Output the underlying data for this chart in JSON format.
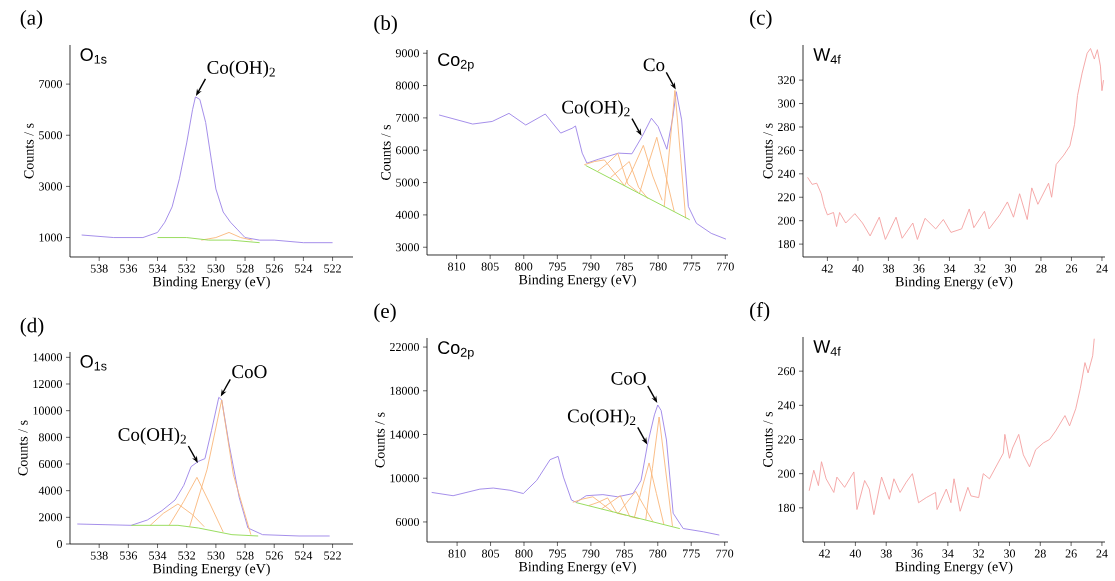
{
  "chart_data": [
    {
      "type": "line",
      "title": "(a)",
      "xlabel": "Binding Energy (eV)",
      "ylabel": "Counts  / s",
      "xlim": [
        540,
        520.6
      ],
      "ylim": [
        240,
        8530
      ],
      "xticks": [
        538,
        536,
        534,
        532,
        530,
        528,
        526,
        524,
        522
      ],
      "yticks": [
        1000,
        3000,
        5000,
        7000
      ],
      "annotations": [
        "O$_{1s}$",
        {
          "text": "Co(OH)$_{2}$",
          "x": 531.4,
          "y": 6500
        }
      ],
      "series": [
        {
          "color": "#9b82e8",
          "x": [
            539.2,
            537,
            535,
            534,
            533.5,
            533,
            532.5,
            532,
            531.6,
            531.4,
            531.1,
            530.7,
            530.3,
            530,
            529.5,
            529,
            528.5,
            528,
            527,
            526,
            524,
            522
          ],
          "values": [
            1100,
            1000,
            1000,
            1200,
            1600,
            2200,
            3300,
            4700,
            6000,
            6500,
            6400,
            5500,
            4000,
            2900,
            2000,
            1600,
            1300,
            1000,
            900,
            900,
            800,
            800
          ]
        },
        {
          "color": "#f9b77a",
          "x": [
            531,
            530,
            529.1,
            528.3,
            527.5
          ],
          "values": [
            900,
            1000,
            1200,
            1000,
            900
          ]
        },
        {
          "color": "#8fd94f",
          "x": [
            534,
            532,
            530.5,
            529,
            527
          ],
          "values": [
            1000,
            1000,
            900,
            900,
            800
          ]
        }
      ]
    },
    {
      "type": "line",
      "title": "(b)",
      "xlabel": "Binding Energy (eV)",
      "ylabel": "Counts  / s",
      "xlim": [
        814.4,
        769.6
      ],
      "ylim": [
        2760,
        9100
      ],
      "xticks": [
        810,
        805,
        800,
        795,
        790,
        785,
        780,
        775,
        770
      ],
      "yticks": [
        3000,
        4000,
        5000,
        6000,
        7000,
        8000,
        9000
      ],
      "annotations": [
        "Co$_{2p}$",
        {
          "text": "Co(OH)$_{2}$",
          "x": 782.4,
          "y": 6420
        },
        {
          "text": "Co",
          "x": 777.3,
          "y": 7850
        }
      ],
      "series": [
        {
          "color": "#9b82e8",
          "x": [
            812.6,
            807.6,
            804.7,
            802.2,
            799.7,
            796.8,
            794.5,
            792.8,
            792.3,
            791.3,
            790.6,
            788.9,
            785.9,
            783.9,
            782.4,
            781.0,
            780.0,
            778.7,
            777.8,
            777.3,
            776.5,
            775.5,
            774.3,
            772.1,
            769.9
          ],
          "values": [
            7090,
            6810,
            6890,
            7140,
            6780,
            7120,
            6530,
            6680,
            6750,
            5910,
            5600,
            5720,
            5910,
            5890,
            6420,
            6990,
            6730,
            6030,
            7040,
            7810,
            6940,
            4260,
            3740,
            3430,
            3250
          ]
        },
        {
          "color": "#f9b77a",
          "x": [
            791,
            789.5,
            788,
            786.5,
            785
          ],
          "values": [
            5550,
            5650,
            5700,
            5300,
            4900
          ]
        },
        {
          "color": "#f9b77a",
          "x": [
            789,
            787.5,
            786,
            784.5,
            783
          ],
          "values": [
            5350,
            5600,
            5900,
            4950,
            4700
          ]
        },
        {
          "color": "#f9b77a",
          "x": [
            787.1,
            785.7,
            784.3,
            782.9,
            781.5
          ],
          "values": [
            5150,
            5400,
            5650,
            4850,
            4500
          ]
        },
        {
          "color": "#f9b77a",
          "x": [
            785,
            783.6,
            782.2,
            780.8,
            779.4
          ],
          "values": [
            4900,
            5500,
            6150,
            5200,
            4450
          ]
        },
        {
          "color": "#f9b77a",
          "x": [
            782.8,
            781.5,
            780.2,
            778.9,
            777.6
          ],
          "values": [
            4650,
            5550,
            6400,
            5250,
            4100
          ]
        },
        {
          "color": "#f9b77a",
          "x": [
            779.1,
            778.3,
            777.5,
            776.7,
            775.9
          ],
          "values": [
            4250,
            6050,
            7850,
            5900,
            3900
          ]
        },
        {
          "color": "#8fd94f",
          "x": [
            790.8,
            775.3
          ],
          "values": [
            5530,
            3850
          ]
        }
      ]
    },
    {
      "type": "line",
      "title": "(c)",
      "xlabel": "Binding Energy (eV)",
      "ylabel": "Counts  / s",
      "xlim": [
        43.6,
        23.8
      ],
      "ylim": [
        169,
        350
      ],
      "xticks": [
        42,
        40,
        38,
        36,
        34,
        32,
        30,
        28,
        26,
        24
      ],
      "yticks": [
        180,
        200,
        220,
        240,
        260,
        280,
        300,
        320
      ],
      "annotations": [
        "W$_{4f}$"
      ],
      "series": [
        {
          "color": "#f4a0a0",
          "x": [
            43.3,
            43.0,
            42.7,
            42.4,
            42.2,
            42.0,
            41.6,
            41.4,
            41.2,
            40.8,
            40.2,
            39.7,
            39.2,
            38.6,
            38.2,
            37.5,
            37.1,
            36.4,
            36.1,
            35.6,
            34.9,
            34.4,
            33.9,
            33.2,
            32.7,
            32.4,
            31.7,
            31.4,
            30.7,
            30.2,
            29.8,
            29.4,
            28.9,
            28.6,
            28.2,
            27.5,
            27.3,
            27.0,
            26.5,
            26.1,
            25.8,
            25.6,
            25.3,
            24.97,
            24.75,
            24.5,
            24.3,
            24.1,
            24.0,
            23.9
          ],
          "values": [
            237,
            231,
            232,
            223,
            212,
            205,
            207,
            195,
            207,
            198,
            206,
            198,
            187,
            203,
            184,
            203,
            185,
            198,
            184,
            202,
            193,
            201,
            190,
            193,
            210,
            194,
            208,
            193,
            205,
            216,
            203,
            223,
            201,
            228,
            214,
            232,
            220,
            248,
            256,
            264,
            282,
            307,
            326,
            343,
            347,
            338,
            346,
            332,
            311,
            320
          ]
        }
      ]
    },
    {
      "type": "line",
      "title": "(d)",
      "xlabel": "Binding Energy (eV)",
      "ylabel": "Counts  / s",
      "xlim": [
        540,
        520.6
      ],
      "ylim": [
        0,
        14400
      ],
      "xticks": [
        538,
        536,
        534,
        532,
        530,
        528,
        526,
        524,
        522
      ],
      "yticks": [
        0,
        2000,
        4000,
        6000,
        8000,
        10000,
        12000,
        14000
      ],
      "annotations": [
        "O$_{1s}$",
        {
          "text": "Co(OH)$_{2}$",
          "x": 531.2,
          "y": 6000
        },
        {
          "text": "CoO",
          "x": 529.7,
          "y": 11000
        }
      ],
      "series": [
        {
          "color": "#9b82e8",
          "x": [
            539.5,
            535.8,
            534.7,
            533.7,
            532.8,
            532.2,
            531.7,
            531.2,
            530.75,
            530.3,
            529.8,
            529.6,
            529.1,
            528.4,
            527.8,
            526.8,
            524.3,
            522.2
          ],
          "values": [
            1500,
            1400,
            1800,
            2500,
            3300,
            4400,
            5800,
            6200,
            6400,
            8500,
            11000,
            10800,
            7500,
            3500,
            1200,
            700,
            600,
            600
          ]
        },
        {
          "color": "#f9b77a",
          "x": [
            534.5,
            533.6,
            532.6,
            531.6,
            530.8
          ],
          "values": [
            1400,
            2300,
            3000,
            2200,
            1300
          ]
        },
        {
          "color": "#f9b77a",
          "x": [
            533.2,
            532.2,
            531.3,
            530.4,
            529.5
          ],
          "values": [
            1400,
            3200,
            5000,
            3000,
            900
          ]
        },
        {
          "color": "#f9b77a",
          "x": [
            531.8,
            530.6,
            529.6,
            528.8,
            527.6
          ],
          "values": [
            1300,
            5600,
            10800,
            5200,
            700
          ]
        },
        {
          "color": "#8fd94f",
          "x": [
            535.8,
            532.6,
            531.2,
            528.9,
            527.1
          ],
          "values": [
            1400,
            1400,
            1200,
            700,
            600
          ]
        }
      ]
    },
    {
      "type": "line",
      "title": "(e)",
      "xlabel": "Binding Energy (eV)",
      "ylabel": "Counts  / s",
      "xlim": [
        814.5,
        769.5
      ],
      "ylim": [
        4165,
        22830
      ],
      "xticks": [
        810,
        805,
        800,
        795,
        790,
        785,
        780,
        775,
        770
      ],
      "yticks": [
        6000,
        10000,
        14000,
        18000,
        22000
      ],
      "annotations": [
        "Co$_{2p}$",
        {
          "text": "CoO",
          "x": 780,
          "y": 16800
        },
        {
          "text": "Co(OH)$_{2}$",
          "x": 781.5,
          "y": 13000
        }
      ],
      "series": [
        {
          "color": "#9b82e8",
          "x": [
            813.8,
            810.6,
            806.6,
            804.6,
            802.1,
            800.1,
            798.1,
            796.1,
            794.9,
            794.1,
            792.9,
            792.2,
            790.7,
            788.2,
            786.0,
            783.7,
            782.5,
            781.5,
            780.5,
            780.0,
            779.5,
            778.7,
            777.7,
            776.2,
            773.2,
            770.8
          ],
          "values": [
            8700,
            8400,
            9000,
            9100,
            8900,
            8600,
            9800,
            11700,
            12000,
            10100,
            8000,
            7800,
            8400,
            8500,
            8300,
            8600,
            9800,
            13200,
            15800,
            16700,
            16200,
            13500,
            6800,
            5400,
            5100,
            4800
          ]
        },
        {
          "color": "#f9b77a",
          "x": [
            792.7,
            791.2,
            789.7,
            788.2,
            786.7
          ],
          "values": [
            7800,
            8100,
            8300,
            7600,
            6900
          ]
        },
        {
          "color": "#f9b77a",
          "x": [
            790.3,
            788.9,
            787.5,
            786.1,
            784.7
          ],
          "values": [
            7500,
            7800,
            8200,
            6800,
            6600
          ]
        },
        {
          "color": "#f9b77a",
          "x": [
            788.4,
            787.0,
            785.6,
            784.2,
            782.8
          ],
          "values": [
            7200,
            7800,
            8400,
            6500,
            6300
          ]
        },
        {
          "color": "#f9b77a",
          "x": [
            785.9,
            784.6,
            783.3,
            782.0,
            780.7
          ],
          "values": [
            6800,
            7800,
            8800,
            7400,
            6000
          ]
        },
        {
          "color": "#f9b77a",
          "x": [
            783.5,
            782.4,
            781.3,
            780.2,
            779.1
          ],
          "values": [
            6400,
            9000,
            11400,
            8600,
            5800
          ]
        },
        {
          "color": "#f9b77a",
          "x": [
            781.8,
            780.8,
            779.8,
            778.8,
            777.8
          ],
          "values": [
            6200,
            10900,
            15600,
            10600,
            5600
          ]
        },
        {
          "color": "#8fd94f",
          "x": [
            792.2,
            776.7
          ],
          "values": [
            7770,
            5390
          ]
        }
      ]
    },
    {
      "type": "line",
      "title": "(f)",
      "xlabel": "Binding Energy (eV)",
      "ylabel": "Counts  / s",
      "xlim": [
        43.4,
        23.8
      ],
      "ylim": [
        160,
        280
      ],
      "xticks": [
        42,
        40,
        38,
        36,
        34,
        32,
        30,
        28,
        26,
        24
      ],
      "yticks": [
        180,
        200,
        220,
        240,
        260
      ],
      "annotations": [
        "W$_{4f}$"
      ],
      "series": [
        {
          "color": "#f4a0a0",
          "x": [
            43.0,
            42.7,
            42.4,
            42.2,
            41.9,
            41.4,
            41.2,
            40.7,
            40.1,
            39.9,
            39.4,
            39.1,
            38.8,
            38.3,
            37.8,
            37.5,
            37.1,
            36.7,
            36.3,
            35.9,
            35.4,
            34.8,
            34.7,
            34.1,
            33.8,
            33.6,
            33.2,
            32.7,
            32.5,
            32.0,
            31.7,
            31.3,
            30.4,
            30.3,
            30.0,
            29.8,
            29.4,
            29.1,
            28.7,
            28.3,
            27.8,
            27.4,
            27.0,
            26.4,
            26.1,
            25.7,
            25.4,
            25.1,
            24.9,
            24.6,
            24.5
          ],
          "values": [
            190,
            202,
            193,
            207,
            197,
            189,
            198,
            192,
            201,
            179,
            196,
            191,
            176,
            198,
            185,
            197,
            189,
            195,
            200,
            183,
            186,
            189,
            179,
            191,
            183,
            197,
            178,
            192,
            187,
            186,
            200,
            197,
            212,
            223,
            209,
            215,
            223,
            211,
            204,
            214,
            218,
            220,
            225,
            234,
            228,
            238,
            250,
            265,
            259,
            269,
            279
          ]
        }
      ]
    }
  ]
}
